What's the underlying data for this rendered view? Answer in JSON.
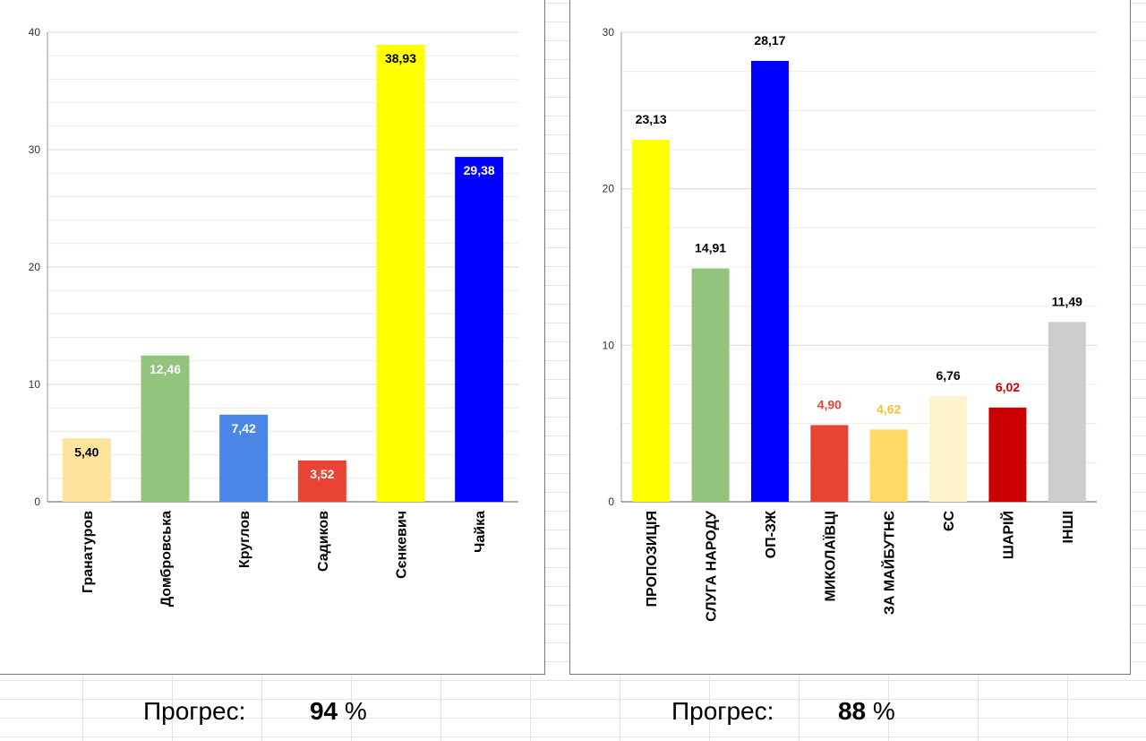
{
  "chart_data": [
    {
      "type": "bar",
      "categories": [
        "Гранатуров",
        "Домбровська",
        "Круглов",
        "Садиков",
        "Сєнкевич",
        "Чайка"
      ],
      "values": [
        5.4,
        12.46,
        7.42,
        3.52,
        38.93,
        29.38
      ],
      "value_labels": [
        "5,40",
        "12,46",
        "7,42",
        "3,52",
        "38,93",
        "29,38"
      ],
      "colors": [
        "#fde49c",
        "#93c47d",
        "#4a86e8",
        "#e84335",
        "#ffff00",
        "#0000ff"
      ],
      "label_colors": [
        "#000000",
        "#ffffff",
        "#ffffff",
        "#ffffff",
        "#000000",
        "#ffffff"
      ],
      "label_position": "inside",
      "yticks": [
        "0",
        "10",
        "20",
        "30",
        "40"
      ],
      "ylim": [
        0,
        40
      ],
      "grid": true,
      "title": "",
      "xlabel": "",
      "ylabel": ""
    },
    {
      "type": "bar",
      "categories": [
        "ПРОПОЗИЦІЯ",
        "СЛУГА НАРОДУ",
        "ОП-ЗЖ",
        "МИКОЛАЇВЦІ",
        "ЗА МАЙБУТНЄ",
        "ЄС",
        "ШАРІЙ",
        "ІНШІ"
      ],
      "values": [
        23.13,
        14.91,
        28.17,
        4.9,
        4.62,
        6.76,
        6.02,
        11.49
      ],
      "value_labels": [
        "23,13",
        "14,91",
        "28,17",
        "4,90",
        "4,62",
        "6,76",
        "6,02",
        "11,49"
      ],
      "colors": [
        "#ffff00",
        "#93c47d",
        "#0000ff",
        "#e84335",
        "#ffd966",
        "#fff2cc",
        "#cc0000",
        "#cccccc"
      ],
      "label_colors": [
        "#000000",
        "#000000",
        "#000000",
        "#e84335",
        "#f1c232",
        "#000000",
        "#cc0000",
        "#000000"
      ],
      "label_position": "above",
      "yticks": [
        "0",
        "10",
        "20",
        "30"
      ],
      "ylim": [
        0,
        30
      ],
      "grid": true,
      "title": "",
      "xlabel": "",
      "ylabel": ""
    }
  ],
  "progress": [
    {
      "label": "Прогрес:",
      "value": "94",
      "unit": "%"
    },
    {
      "label": "Прогрес:",
      "value": "88",
      "unit": "%"
    }
  ]
}
